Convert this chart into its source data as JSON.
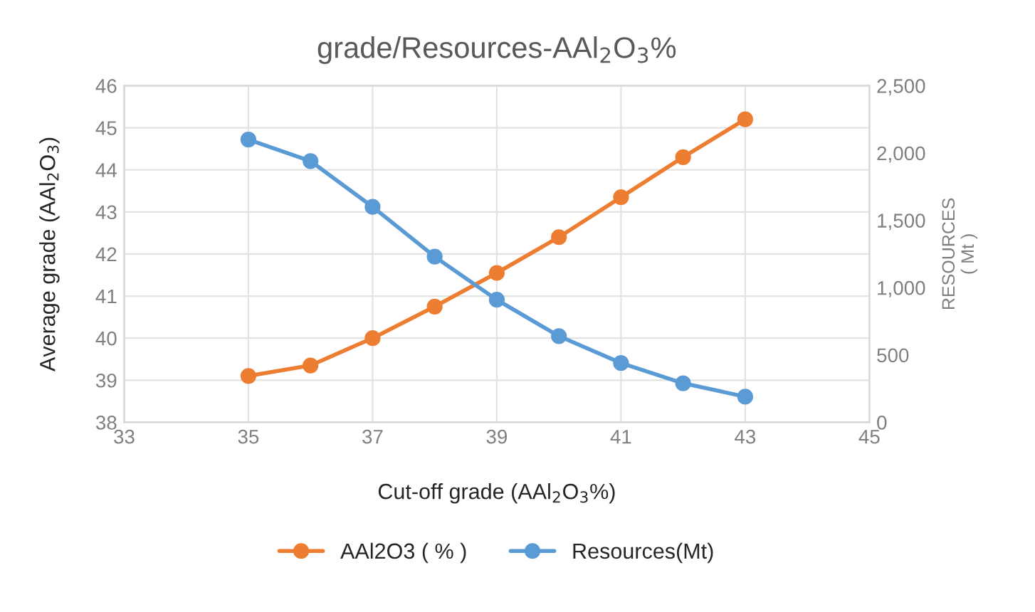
{
  "chart_data": {
    "type": "line",
    "title": "grade/Resources-AAl$_{2}$O$_{3}$%",
    "xlabel": "Cut-off grade (AAl$_{2}$O$_{3}$%)",
    "ylabel": "Average grade (AAl$_{2}$O$_{3}$)",
    "y2label": "RESOURCES\n( Mt )",
    "x": [
      35,
      36,
      37,
      38,
      39,
      40,
      41,
      42,
      43
    ],
    "series": [
      {
        "name": "AAl2O3 ( % )",
        "color": "#ed7d31",
        "values": [
          39.1,
          39.35,
          40.0,
          40.75,
          41.55,
          42.4,
          43.35,
          44.3,
          45.2
        ]
      },
      {
        "name": "Resources(Mt)",
        "color": "#5b9bd5",
        "axis": "y2",
        "values": [
          2100,
          1940,
          1600,
          1230,
          910,
          640,
          440,
          290,
          190
        ]
      }
    ],
    "xlim": [
      33,
      45
    ],
    "xticks": [
      33,
      35,
      37,
      39,
      41,
      43,
      45
    ],
    "ylim": [
      38,
      46
    ],
    "yticks": [
      38,
      39,
      40,
      41,
      42,
      43,
      44,
      45,
      46
    ],
    "y2lim": [
      0,
      2500
    ],
    "y2ticks": [
      0,
      500,
      {
        "value": 1000,
        "label": "1,000"
      },
      {
        "value": 1500,
        "label": "1,500"
      },
      {
        "value": 2000,
        "label": "2,000"
      },
      {
        "value": 2500,
        "label": "2,500"
      }
    ],
    "grid": true,
    "legend": "bottom",
    "marker": "circle",
    "line_style": "solid"
  }
}
